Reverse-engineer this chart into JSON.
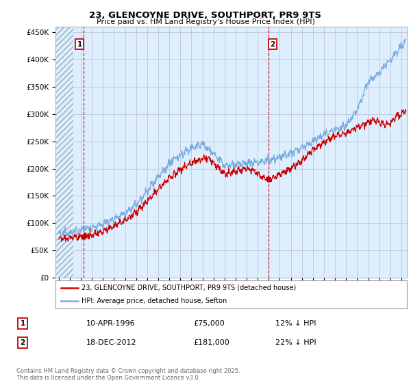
{
  "title1": "23, GLENCOYNE DRIVE, SOUTHPORT, PR9 9TS",
  "title2": "Price paid vs. HM Land Registry's House Price Index (HPI)",
  "ylim": [
    0,
    460000
  ],
  "yticks": [
    0,
    50000,
    100000,
    150000,
    200000,
    250000,
    300000,
    350000,
    400000,
    450000
  ],
  "ytick_labels": [
    "£0",
    "£50K",
    "£100K",
    "£150K",
    "£200K",
    "£250K",
    "£300K",
    "£350K",
    "£400K",
    "£450K"
  ],
  "xlim_start": 1993.7,
  "xlim_end": 2025.5,
  "hatch_end": 1995.3,
  "sale1_x": 1996.27,
  "sale1_y": 75000,
  "sale2_x": 2012.96,
  "sale2_y": 181000,
  "legend_line1": "23, GLENCOYNE DRIVE, SOUTHPORT, PR9 9TS (detached house)",
  "legend_line2": "HPI: Average price, detached house, Sefton",
  "annotation1_date": "10-APR-1996",
  "annotation1_price": "£75,000",
  "annotation1_hpi": "12% ↓ HPI",
  "annotation2_date": "18-DEC-2012",
  "annotation2_price": "£181,000",
  "annotation2_hpi": "22% ↓ HPI",
  "footer": "Contains HM Land Registry data © Crown copyright and database right 2025.\nThis data is licensed under the Open Government Licence v3.0.",
  "red_color": "#cc0000",
  "blue_color": "#7aaadd",
  "chart_bg": "#ddeeff",
  "plot_bg": "#ffffff",
  "grid_color": "#bbbbcc"
}
